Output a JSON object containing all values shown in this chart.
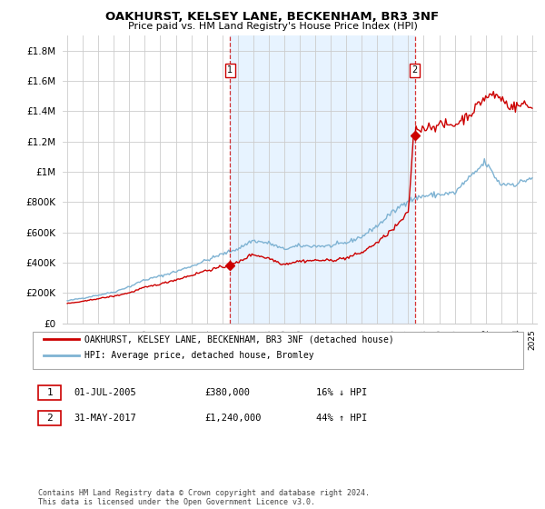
{
  "title": "OAKHURST, KELSEY LANE, BECKENHAM, BR3 3NF",
  "subtitle": "Price paid vs. HM Land Registry's House Price Index (HPI)",
  "ytick_values": [
    0,
    200000,
    400000,
    600000,
    800000,
    1000000,
    1200000,
    1400000,
    1600000,
    1800000
  ],
  "ylim": [
    0,
    1900000
  ],
  "xlim_start": 1994.7,
  "xlim_end": 2025.3,
  "marker1_x": 2005.5,
  "marker1_y": 380000,
  "marker1_label": "1",
  "marker2_x": 2017.42,
  "marker2_y": 1240000,
  "marker2_label": "2",
  "legend_line1": "OAKHURST, KELSEY LANE, BECKENHAM, BR3 3NF (detached house)",
  "legend_line2": "HPI: Average price, detached house, Bromley",
  "annotation1_date": "01-JUL-2005",
  "annotation1_price": "£380,000",
  "annotation1_hpi": "16% ↓ HPI",
  "annotation2_date": "31-MAY-2017",
  "annotation2_price": "£1,240,000",
  "annotation2_hpi": "44% ↑ HPI",
  "footer": "Contains HM Land Registry data © Crown copyright and database right 2024.\nThis data is licensed under the Open Government Licence v3.0.",
  "line_color_property": "#cc0000",
  "line_color_hpi": "#7fb3d3",
  "fill_color": "#ddeeff",
  "background_color": "#ffffff",
  "grid_color": "#cccccc",
  "dashed_line_color": "#cc0000"
}
